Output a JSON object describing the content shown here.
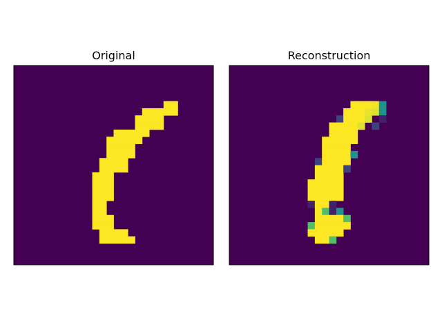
{
  "colormap": {
    "name": "viridis",
    "stops": [
      "#440154",
      "#3b528b",
      "#21918c",
      "#5ec962",
      "#fde725"
    ]
  },
  "chart_data": [
    {
      "type": "heatmap",
      "title": "Original",
      "rows": 28,
      "cols": 28,
      "vmin": 0,
      "vmax": 1,
      "axes_visible": false,
      "grid": false,
      "pixels": [
        [
          5,
          21,
          1.0
        ],
        [
          5,
          22,
          1.0
        ],
        [
          6,
          18,
          1.0
        ],
        [
          6,
          19,
          1.0
        ],
        [
          6,
          20,
          1.0
        ],
        [
          6,
          21,
          1.0
        ],
        [
          6,
          22,
          1.0
        ],
        [
          7,
          17,
          1.0
        ],
        [
          7,
          18,
          1.0
        ],
        [
          7,
          19,
          1.0
        ],
        [
          7,
          20,
          1.0
        ],
        [
          8,
          17,
          1.0
        ],
        [
          8,
          18,
          1.0
        ],
        [
          8,
          19,
          1.0
        ],
        [
          8,
          20,
          1.0
        ],
        [
          9,
          14,
          1.0
        ],
        [
          9,
          15,
          1.0
        ],
        [
          9,
          16,
          1.0
        ],
        [
          9,
          17,
          1.0
        ],
        [
          9,
          18,
          1.0
        ],
        [
          10,
          13,
          1.0
        ],
        [
          10,
          14,
          1.0
        ],
        [
          10,
          15,
          1.0
        ],
        [
          10,
          16,
          1.0
        ],
        [
          10,
          17,
          1.0
        ],
        [
          11,
          13,
          1.0
        ],
        [
          11,
          14,
          1.0
        ],
        [
          11,
          15,
          1.0
        ],
        [
          11,
          16,
          1.0
        ],
        [
          12,
          13,
          1.0
        ],
        [
          12,
          14,
          1.0
        ],
        [
          12,
          15,
          1.0
        ],
        [
          12,
          16,
          1.0
        ],
        [
          13,
          12,
          1.0
        ],
        [
          13,
          13,
          1.0
        ],
        [
          13,
          14,
          1.0
        ],
        [
          13,
          15,
          1.0
        ],
        [
          14,
          12,
          1.0
        ],
        [
          14,
          13,
          1.0
        ],
        [
          14,
          14,
          1.0
        ],
        [
          14,
          15,
          1.0
        ],
        [
          15,
          11,
          1.0
        ],
        [
          15,
          12,
          1.0
        ],
        [
          15,
          13,
          1.0
        ],
        [
          16,
          11,
          1.0
        ],
        [
          16,
          12,
          1.0
        ],
        [
          16,
          13,
          1.0
        ],
        [
          17,
          11,
          1.0
        ],
        [
          17,
          12,
          1.0
        ],
        [
          17,
          13,
          1.0
        ],
        [
          18,
          11,
          1.0
        ],
        [
          18,
          12,
          1.0
        ],
        [
          18,
          13,
          1.0
        ],
        [
          19,
          11,
          1.0
        ],
        [
          19,
          12,
          1.0
        ],
        [
          20,
          11,
          1.0
        ],
        [
          20,
          12,
          1.0
        ],
        [
          21,
          11,
          1.0
        ],
        [
          21,
          12,
          1.0
        ],
        [
          21,
          13,
          1.0
        ],
        [
          22,
          11,
          1.0
        ],
        [
          22,
          12,
          1.0
        ],
        [
          22,
          13,
          1.0
        ],
        [
          23,
          12,
          1.0
        ],
        [
          23,
          13,
          1.0
        ],
        [
          23,
          14,
          1.0
        ],
        [
          23,
          15,
          1.0
        ],
        [
          24,
          12,
          1.0
        ],
        [
          24,
          13,
          1.0
        ],
        [
          24,
          14,
          1.0
        ],
        [
          24,
          15,
          1.0
        ],
        [
          24,
          16,
          1.0
        ]
      ]
    },
    {
      "type": "heatmap",
      "title": "Reconstruction",
      "rows": 28,
      "cols": 28,
      "vmin": 0,
      "vmax": 1,
      "axes_visible": false,
      "grid": false,
      "pixels": [
        [
          5,
          17,
          1.0
        ],
        [
          5,
          18,
          1.0
        ],
        [
          5,
          19,
          1.0
        ],
        [
          5,
          20,
          0.98
        ],
        [
          5,
          21,
          0.5
        ],
        [
          6,
          16,
          1.0
        ],
        [
          6,
          17,
          1.0
        ],
        [
          6,
          18,
          1.0
        ],
        [
          6,
          19,
          0.97
        ],
        [
          6,
          20,
          0.95
        ],
        [
          6,
          21,
          0.5
        ],
        [
          7,
          15,
          0.2
        ],
        [
          7,
          16,
          1.0
        ],
        [
          7,
          17,
          1.0
        ],
        [
          7,
          18,
          1.0
        ],
        [
          7,
          19,
          0.95
        ],
        [
          7,
          21,
          0.1
        ],
        [
          8,
          14,
          1.0
        ],
        [
          8,
          15,
          1.0
        ],
        [
          8,
          16,
          1.0
        ],
        [
          8,
          17,
          1.0
        ],
        [
          8,
          18,
          0.95
        ],
        [
          8,
          20,
          0.2
        ],
        [
          9,
          14,
          1.0
        ],
        [
          9,
          15,
          1.0
        ],
        [
          9,
          16,
          1.0
        ],
        [
          9,
          17,
          1.0
        ],
        [
          10,
          13,
          1.0
        ],
        [
          10,
          14,
          1.0
        ],
        [
          10,
          15,
          1.0
        ],
        [
          10,
          16,
          1.0
        ],
        [
          10,
          17,
          1.0
        ],
        [
          11,
          13,
          1.0
        ],
        [
          11,
          14,
          1.0
        ],
        [
          11,
          15,
          1.0
        ],
        [
          11,
          16,
          1.0
        ],
        [
          12,
          13,
          1.0
        ],
        [
          12,
          14,
          1.0
        ],
        [
          12,
          15,
          1.0
        ],
        [
          12,
          16,
          1.0
        ],
        [
          12,
          17,
          0.5
        ],
        [
          13,
          12,
          0.2
        ],
        [
          13,
          13,
          1.0
        ],
        [
          13,
          14,
          1.0
        ],
        [
          13,
          15,
          1.0
        ],
        [
          13,
          16,
          1.0
        ],
        [
          14,
          12,
          1.0
        ],
        [
          14,
          13,
          1.0
        ],
        [
          14,
          14,
          1.0
        ],
        [
          14,
          15,
          1.0
        ],
        [
          14,
          16,
          0.2
        ],
        [
          15,
          12,
          1.0
        ],
        [
          15,
          13,
          1.0
        ],
        [
          15,
          14,
          1.0
        ],
        [
          15,
          15,
          1.0
        ],
        [
          16,
          11,
          1.0
        ],
        [
          16,
          12,
          1.0
        ],
        [
          16,
          13,
          1.0
        ],
        [
          16,
          14,
          1.0
        ],
        [
          16,
          15,
          1.0
        ],
        [
          17,
          11,
          1.0
        ],
        [
          17,
          12,
          1.0
        ],
        [
          17,
          13,
          1.0
        ],
        [
          17,
          14,
          1.0
        ],
        [
          17,
          15,
          1.0
        ],
        [
          18,
          11,
          1.0
        ],
        [
          18,
          12,
          1.0
        ],
        [
          18,
          13,
          1.0
        ],
        [
          18,
          14,
          1.0
        ],
        [
          18,
          15,
          1.0
        ],
        [
          19,
          11,
          0.1
        ],
        [
          19,
          12,
          1.0
        ],
        [
          19,
          13,
          1.0
        ],
        [
          19,
          14,
          0.1
        ],
        [
          20,
          12,
          1.0
        ],
        [
          20,
          13,
          0.7
        ],
        [
          20,
          14,
          0.1
        ],
        [
          20,
          15,
          0.5
        ],
        [
          21,
          12,
          1.0
        ],
        [
          21,
          13,
          1.0
        ],
        [
          21,
          14,
          1.0
        ],
        [
          21,
          15,
          1.0
        ],
        [
          21,
          16,
          0.7
        ],
        [
          22,
          11,
          0.7
        ],
        [
          22,
          12,
          1.0
        ],
        [
          22,
          13,
          1.0
        ],
        [
          22,
          14,
          1.0
        ],
        [
          22,
          15,
          1.0
        ],
        [
          22,
          16,
          1.0
        ],
        [
          23,
          11,
          1.0
        ],
        [
          23,
          12,
          1.0
        ],
        [
          23,
          13,
          1.0
        ],
        [
          23,
          14,
          1.0
        ],
        [
          23,
          15,
          1.0
        ],
        [
          24,
          12,
          1.0
        ],
        [
          24,
          13,
          1.0
        ],
        [
          24,
          14,
          0.7
        ]
      ]
    }
  ]
}
